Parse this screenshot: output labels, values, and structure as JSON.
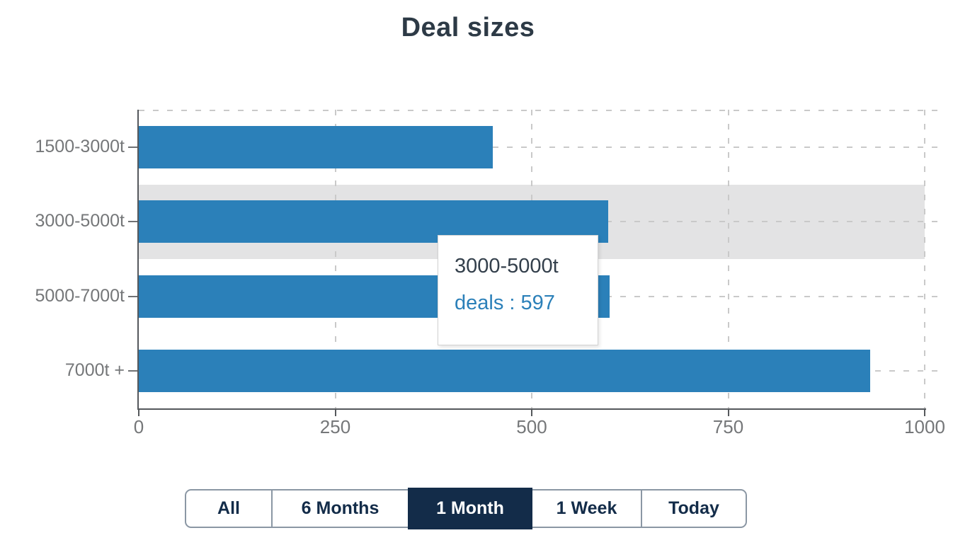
{
  "title": "Deal sizes",
  "chart_data": {
    "type": "bar",
    "orientation": "horizontal",
    "title": "Deal sizes",
    "categories": [
      "1500-3000t",
      "3000-5000t",
      "5000-7000t",
      "7000t +"
    ],
    "series": [
      {
        "name": "deals",
        "values": [
          450,
          597,
          599,
          931
        ]
      }
    ],
    "xlim": [
      0,
      1000
    ],
    "x_ticks": [
      0,
      250,
      500,
      750,
      1000
    ],
    "grid": true,
    "legend_position": "none",
    "highlighted_category": "3000-5000t",
    "bar_color": "#2b80b9",
    "highlight_band_color": "#e3e3e4"
  },
  "tooltip": {
    "category": "3000-5000t",
    "series_name": "deals",
    "value": 597,
    "value_line": "deals : 597"
  },
  "time_filters": {
    "options": [
      {
        "label": "All",
        "selected": false
      },
      {
        "label": "6 Months",
        "selected": false
      },
      {
        "label": "1 Month",
        "selected": true
      },
      {
        "label": "1 Week",
        "selected": false
      },
      {
        "label": "Today",
        "selected": false
      }
    ]
  },
  "colors": {
    "bar": "#2b80b9",
    "highlight_band": "#e3e3e4",
    "axis": "#55585c",
    "gridline": "#c9c9c9",
    "axis_label": "#757779",
    "title_text": "#2d3a46",
    "tooltip_category_text": "#333f4b",
    "tooltip_value_text": "#2b80b9",
    "button_text": "#132c49",
    "button_border": "#8b97a4",
    "button_active_bg": "#132c49",
    "button_active_text": "#ffffff"
  }
}
